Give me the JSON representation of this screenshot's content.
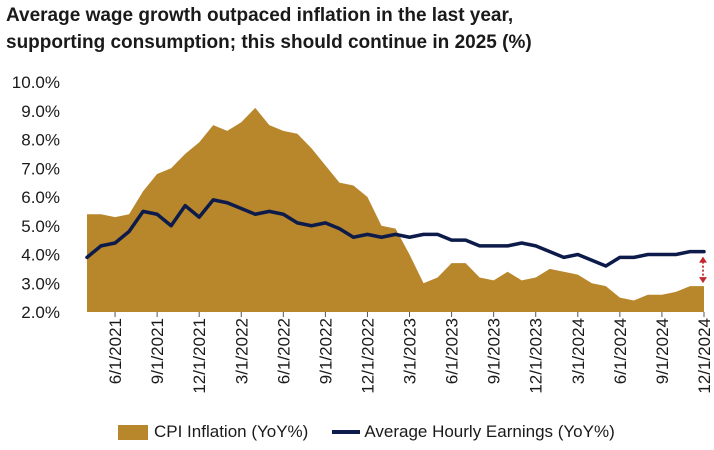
{
  "chart_data": {
    "type": "area",
    "title": "Average wage growth outpaced inflation in the last year,",
    "subtitle": "supporting consumption; this should continue in 2025 (%)",
    "xlabel": "",
    "ylabel": "",
    "ylim": [
      2.0,
      10.0
    ],
    "yticks": [
      "2.0%",
      "3.0%",
      "4.0%",
      "5.0%",
      "6.0%",
      "7.0%",
      "8.0%",
      "9.0%",
      "10.0%"
    ],
    "xticks": [
      "6/1/2021",
      "9/1/2021",
      "12/1/2021",
      "3/1/2022",
      "6/1/2022",
      "9/1/2022",
      "12/1/2022",
      "3/1/2023",
      "6/1/2023",
      "9/1/2023",
      "12/1/2023",
      "3/1/2024",
      "6/1/2024",
      "9/1/2024",
      "12/1/2024"
    ],
    "x": [
      "2021-04",
      "2021-05",
      "2021-06",
      "2021-07",
      "2021-08",
      "2021-09",
      "2021-10",
      "2021-11",
      "2021-12",
      "2022-01",
      "2022-02",
      "2022-03",
      "2022-04",
      "2022-05",
      "2022-06",
      "2022-07",
      "2022-08",
      "2022-09",
      "2022-10",
      "2022-11",
      "2022-12",
      "2023-01",
      "2023-02",
      "2023-03",
      "2023-04",
      "2023-05",
      "2023-06",
      "2023-07",
      "2023-08",
      "2023-09",
      "2023-10",
      "2023-11",
      "2023-12",
      "2024-01",
      "2024-02",
      "2024-03",
      "2024-04",
      "2024-05",
      "2024-06",
      "2024-07",
      "2024-08",
      "2024-09",
      "2024-10",
      "2024-11",
      "2024-12"
    ],
    "series": [
      {
        "name": "CPI Inflation (YoY%)",
        "type": "area",
        "color": "#b8862b",
        "values": [
          5.4,
          5.4,
          5.3,
          5.4,
          6.2,
          6.8,
          7.0,
          7.5,
          7.9,
          8.5,
          8.3,
          8.6,
          9.1,
          8.5,
          8.3,
          8.2,
          7.7,
          7.1,
          6.5,
          6.4,
          6.0,
          5.0,
          4.9,
          4.0,
          3.0,
          3.2,
          3.7,
          3.7,
          3.2,
          3.1,
          3.4,
          3.1,
          3.2,
          3.5,
          3.4,
          3.3,
          3.0,
          2.9,
          2.5,
          2.4,
          2.6,
          2.6,
          2.7,
          2.9,
          2.9
        ]
      },
      {
        "name": "Average Hourly Earnings (YoY%)",
        "type": "line",
        "color": "#0d1b4b",
        "values": [
          3.9,
          4.3,
          4.4,
          4.8,
          5.5,
          5.4,
          5.0,
          5.7,
          5.3,
          5.9,
          5.8,
          5.6,
          5.4,
          5.5,
          5.4,
          5.1,
          5.0,
          5.1,
          4.9,
          4.6,
          4.7,
          4.6,
          4.7,
          4.6,
          4.7,
          4.7,
          4.5,
          4.5,
          4.3,
          4.3,
          4.3,
          4.4,
          4.3,
          4.1,
          3.9,
          4.0,
          3.8,
          3.6,
          3.9,
          3.9,
          4.0,
          4.0,
          4.0,
          4.1,
          4.1
        ]
      }
    ],
    "annotation": {
      "type": "double-arrow",
      "color": "#c0282d",
      "x": "2024-12",
      "from": 2.9,
      "to": 4.1
    },
    "grid": false,
    "legend_position": "bottom"
  }
}
